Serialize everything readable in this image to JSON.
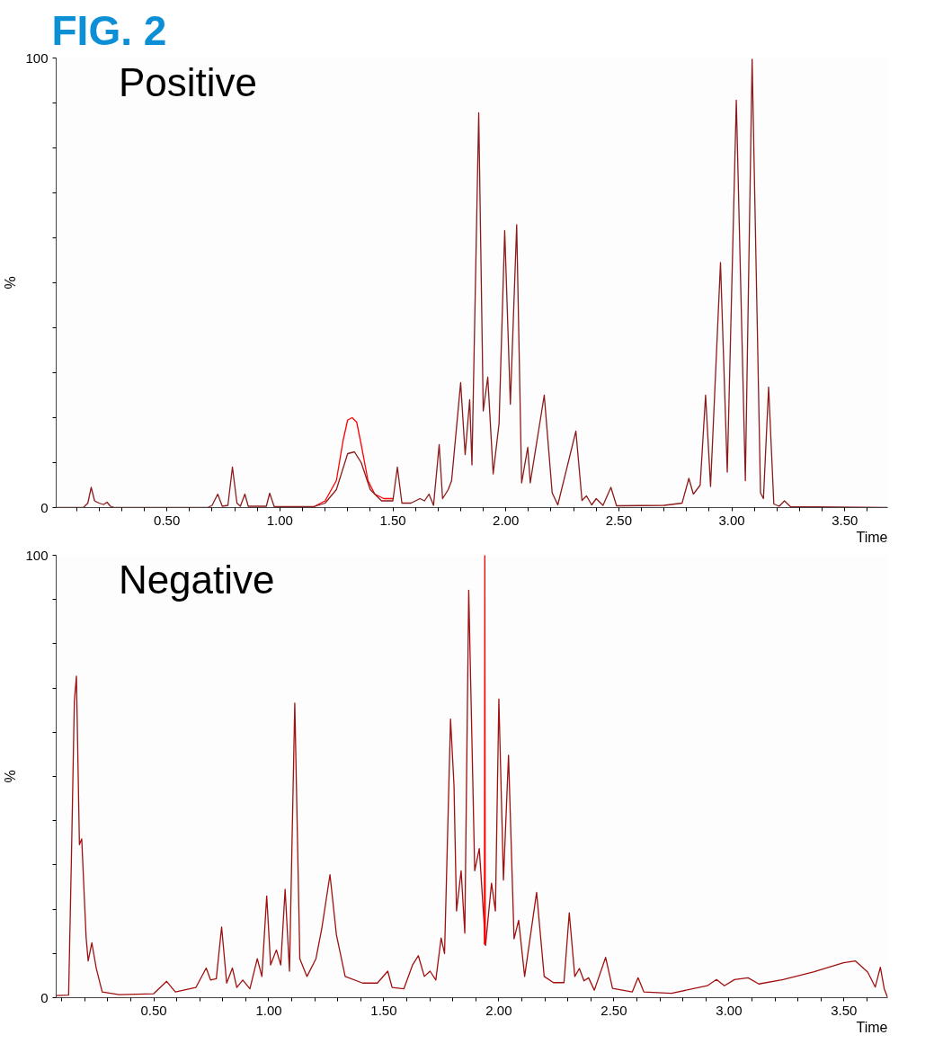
{
  "chart_data": [
    {
      "type": "line",
      "title": "Positive",
      "annotations": [
        "FIG. 2"
      ],
      "xlabel": "Time",
      "ylabel": "%",
      "xlim": [
        0.01,
        3.69
      ],
      "ylim": [
        0,
        100
      ],
      "xticks": [
        {
          "value": 0.1,
          "label": null
        },
        {
          "value": 0.2,
          "label": null
        },
        {
          "value": 0.3,
          "label": null
        },
        {
          "value": 0.4,
          "label": null
        },
        {
          "value": 0.5,
          "label": "0.50"
        },
        {
          "value": 0.6,
          "label": null
        },
        {
          "value": 0.7,
          "label": null
        },
        {
          "value": 0.8,
          "label": null
        },
        {
          "value": 0.9,
          "label": null
        },
        {
          "value": 1.0,
          "label": "1.00"
        },
        {
          "value": 1.1,
          "label": null
        },
        {
          "value": 1.2,
          "label": null
        },
        {
          "value": 1.3,
          "label": null
        },
        {
          "value": 1.4,
          "label": null
        },
        {
          "value": 1.5,
          "label": "1.50"
        },
        {
          "value": 1.6,
          "label": null
        },
        {
          "value": 1.7,
          "label": null
        },
        {
          "value": 1.8,
          "label": null
        },
        {
          "value": 1.9,
          "label": null
        },
        {
          "value": 2.0,
          "label": "2.00"
        },
        {
          "value": 2.1,
          "label": null
        },
        {
          "value": 2.2,
          "label": null
        },
        {
          "value": 2.3,
          "label": null
        },
        {
          "value": 2.4,
          "label": null
        },
        {
          "value": 2.5,
          "label": "2.50"
        },
        {
          "value": 2.6,
          "label": null
        },
        {
          "value": 2.7,
          "label": null
        },
        {
          "value": 2.8,
          "label": null
        },
        {
          "value": 2.9,
          "label": null
        },
        {
          "value": 3.0,
          "label": "3.00"
        },
        {
          "value": 3.1,
          "label": null
        },
        {
          "value": 3.2,
          "label": null
        },
        {
          "value": 3.3,
          "label": null
        },
        {
          "value": 3.4,
          "label": null
        },
        {
          "value": 3.5,
          "label": "3.50"
        },
        {
          "value": 3.6,
          "label": null
        }
      ],
      "yticks": [
        0,
        {
          "value": 10,
          "label": null
        },
        {
          "value": 20,
          "label": null
        },
        {
          "value": 30,
          "label": null
        },
        {
          "value": 40,
          "label": null
        },
        {
          "value": 50,
          "label": null
        },
        {
          "value": 60,
          "label": null
        },
        {
          "value": 70,
          "label": null
        },
        {
          "value": 80,
          "label": null
        },
        {
          "value": 90,
          "label": null
        },
        100
      ],
      "series": [
        {
          "color": "#ff0000",
          "x": [
            1.15,
            1.2,
            1.25,
            1.28,
            1.3,
            1.32,
            1.34,
            1.36,
            1.39,
            1.42,
            1.46,
            1.5
          ],
          "values": [
            0.2,
            1.5,
            6,
            15,
            19.5,
            20,
            19,
            14,
            6,
            3,
            2,
            2
          ]
        },
        {
          "color": "#8b1a1a",
          "x": [
            0.01,
            0.13,
            0.15,
            0.165,
            0.18,
            0.2,
            0.22,
            0.235,
            0.25,
            0.27,
            0.68,
            0.7,
            0.725,
            0.745,
            0.77,
            0.79,
            0.81,
            0.825,
            0.845,
            0.86,
            0.94,
            0.955,
            0.975,
            1.15,
            1.2,
            1.25,
            1.3,
            1.33,
            1.36,
            1.4,
            1.45,
            1.5,
            1.52,
            1.54,
            1.58,
            1.62,
            1.64,
            1.66,
            1.68,
            1.705,
            1.72,
            1.745,
            1.76,
            1.8,
            1.82,
            1.84,
            1.85,
            1.88,
            1.9,
            1.92,
            1.944,
            1.97,
            1.995,
            2.02,
            2.048,
            2.07,
            2.097,
            2.108,
            2.17,
            2.205,
            2.23,
            2.31,
            2.337,
            2.357,
            2.38,
            2.4,
            2.43,
            2.465,
            2.49,
            2.7,
            2.78,
            2.81,
            2.83,
            2.86,
            2.884,
            2.906,
            2.95,
            2.98,
            3.02,
            3.06,
            3.09,
            3.127,
            3.14,
            3.163,
            3.186,
            3.21,
            3.233,
            3.26,
            3.69
          ],
          "values": [
            0,
            0,
            1,
            4.5,
            1.5,
            1,
            0.7,
            1.2,
            0.3,
            0,
            0,
            0.5,
            3,
            0.3,
            0.5,
            9,
            1,
            0.3,
            3,
            0.3,
            0.3,
            3.2,
            0.2,
            0.2,
            1,
            4,
            12,
            12.4,
            10,
            4,
            1.5,
            1.5,
            9,
            1,
            1,
            2,
            1.5,
            3,
            0.5,
            14,
            2,
            4,
            6,
            27.8,
            11.8,
            24,
            9.5,
            87.8,
            21.5,
            29,
            7.5,
            18.7,
            61.6,
            23,
            62.9,
            5.5,
            13.4,
            5.5,
            25,
            3.3,
            0.6,
            17,
            1.6,
            2.6,
            0.6,
            2,
            0.5,
            4.5,
            0.4,
            0.5,
            1,
            6.5,
            3,
            5,
            25,
            4.7,
            54.5,
            7.9,
            90.6,
            6,
            99.7,
            3.3,
            2,
            26.8,
            0.8,
            0.3,
            1.5,
            0.2,
            0
          ]
        }
      ]
    },
    {
      "type": "line",
      "title": "Negative",
      "xlabel": "Time",
      "ylabel": "%",
      "xlim": [
        0.076,
        3.69
      ],
      "ylim": [
        0,
        100
      ],
      "xticks": [
        {
          "value": 0.1,
          "label": null
        },
        {
          "value": 0.2,
          "label": null
        },
        {
          "value": 0.3,
          "label": null
        },
        {
          "value": 0.4,
          "label": null
        },
        {
          "value": 0.5,
          "label": "0.50"
        },
        {
          "value": 0.6,
          "label": null
        },
        {
          "value": 0.7,
          "label": null
        },
        {
          "value": 0.8,
          "label": null
        },
        {
          "value": 0.9,
          "label": null
        },
        {
          "value": 1.0,
          "label": "1.00"
        },
        {
          "value": 1.1,
          "label": null
        },
        {
          "value": 1.2,
          "label": null
        },
        {
          "value": 1.3,
          "label": null
        },
        {
          "value": 1.4,
          "label": null
        },
        {
          "value": 1.5,
          "label": "1.50"
        },
        {
          "value": 1.6,
          "label": null
        },
        {
          "value": 1.7,
          "label": null
        },
        {
          "value": 1.8,
          "label": null
        },
        {
          "value": 1.9,
          "label": null
        },
        {
          "value": 2.0,
          "label": "2.00"
        },
        {
          "value": 2.1,
          "label": null
        },
        {
          "value": 2.2,
          "label": null
        },
        {
          "value": 2.3,
          "label": null
        },
        {
          "value": 2.4,
          "label": null
        },
        {
          "value": 2.5,
          "label": "2.50"
        },
        {
          "value": 2.6,
          "label": null
        },
        {
          "value": 2.7,
          "label": null
        },
        {
          "value": 2.8,
          "label": null
        },
        {
          "value": 2.9,
          "label": null
        },
        {
          "value": 3.0,
          "label": "3.00"
        },
        {
          "value": 3.1,
          "label": null
        },
        {
          "value": 3.2,
          "label": null
        },
        {
          "value": 3.3,
          "label": null
        },
        {
          "value": 3.4,
          "label": null
        },
        {
          "value": 3.5,
          "label": "3.50"
        },
        {
          "value": 3.6,
          "label": null
        }
      ],
      "yticks": [
        0,
        {
          "value": 10,
          "label": null
        },
        {
          "value": 20,
          "label": null
        },
        {
          "value": 30,
          "label": null
        },
        {
          "value": 40,
          "label": null
        },
        {
          "value": 50,
          "label": null
        },
        {
          "value": 60,
          "label": null
        },
        {
          "value": 70,
          "label": null
        },
        {
          "value": 80,
          "label": null
        },
        {
          "value": 90,
          "label": null
        },
        100
      ],
      "series": [
        {
          "color": "#a01010",
          "x": [
            0.076,
            0.13,
            0.142,
            0.155,
            0.164,
            0.177,
            0.187,
            0.206,
            0.215,
            0.231,
            0.25,
            0.276,
            0.35,
            0.5,
            0.556,
            0.594,
            0.683,
            0.728,
            0.747,
            0.772,
            0.795,
            0.817,
            0.842,
            0.861,
            0.887,
            0.918,
            0.95,
            0.97,
            0.991,
            1.008,
            1.033,
            1.052,
            1.071,
            1.09,
            1.113,
            1.135,
            1.166,
            1.205,
            1.23,
            1.266,
            1.294,
            1.332,
            1.408,
            1.472,
            1.517,
            1.536,
            1.587,
            1.625,
            1.65,
            1.676,
            1.701,
            1.726,
            1.749,
            1.764,
            1.79,
            1.805,
            1.816,
            1.836,
            1.852,
            1.869,
            1.895,
            1.915,
            1.942,
            1.968,
            1.985,
            2.0,
            2.02,
            2.042,
            2.066,
            2.086,
            2.112,
            2.164,
            2.197,
            2.237,
            2.283,
            2.306,
            2.33,
            2.35,
            2.37,
            2.39,
            2.415,
            2.464,
            2.494,
            2.58,
            2.605,
            2.63,
            2.75,
            2.906,
            2.946,
            2.98,
            3.024,
            3.083,
            3.13,
            3.235,
            3.367,
            3.498,
            3.55,
            3.603,
            3.636,
            3.658,
            3.675,
            3.69
          ],
          "values": [
            0.5,
            0.6,
            31,
            67,
            72.7,
            34.6,
            35.9,
            13.7,
            8.3,
            12.4,
            6.7,
            1.3,
            0.7,
            0.9,
            3.7,
            1.3,
            2.3,
            6.7,
            4,
            4.3,
            16,
            3.3,
            6.7,
            2.3,
            4,
            2,
            8.8,
            4.8,
            23,
            7.4,
            10.8,
            7.4,
            24.5,
            6,
            66.6,
            8.8,
            4.8,
            8.8,
            15.5,
            27.8,
            14.2,
            4.8,
            3.3,
            3.3,
            6,
            2.3,
            2,
            7.4,
            9.5,
            4.8,
            6,
            4,
            13.5,
            10,
            63,
            48,
            19.6,
            28.7,
            14.6,
            92.1,
            28.7,
            33.7,
            11.8,
            25.9,
            19.6,
            67.5,
            26.6,
            54.8,
            13.3,
            17.5,
            4.8,
            23.8,
            4.8,
            3.4,
            3.4,
            19.2,
            4.8,
            6.6,
            3.8,
            4.5,
            1.7,
            9.1,
            2.1,
            1.3,
            4.5,
            1.3,
            1,
            2.7,
            4.1,
            2.7,
            4.1,
            4.5,
            3.1,
            4.1,
            5.8,
            7.9,
            8.3,
            5.8,
            2.4,
            6.9,
            2,
            0
          ]
        },
        {
          "color": "#ff0000",
          "x": [
            1.937,
            1.939,
            1.941
          ],
          "values": [
            12,
            100,
            12
          ]
        }
      ]
    }
  ]
}
